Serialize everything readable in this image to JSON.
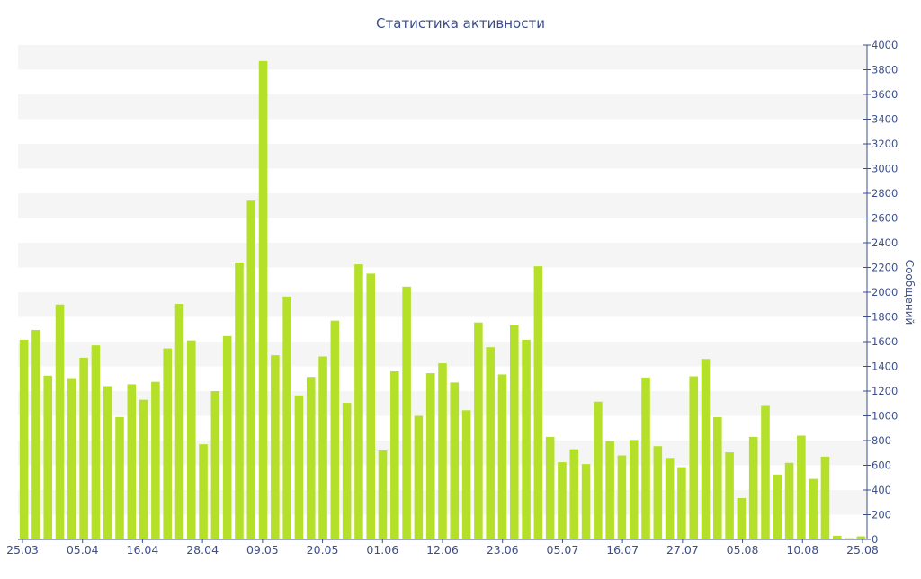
{
  "chart_data": {
    "type": "bar",
    "title": "Статистика активности",
    "ylabel": "Сообщений",
    "xlabel": "",
    "ylim": [
      0,
      4000
    ],
    "y_ticks": [
      0,
      200,
      400,
      600,
      800,
      1000,
      1200,
      1400,
      1600,
      1800,
      2000,
      2200,
      2400,
      2600,
      2800,
      3000,
      3200,
      3400,
      3600,
      3800,
      4000
    ],
    "y_axis_side": "right",
    "grid": "alternating horizontal bands",
    "legend": "none",
    "x_tick_labels": [
      "25.03",
      "05.04",
      "16.04",
      "28.04",
      "09.05",
      "20.05",
      "01.06",
      "12.06",
      "23.06",
      "05.07",
      "16.07",
      "27.07",
      "05.08",
      "10.08",
      "25.08"
    ],
    "values": [
      1615,
      1695,
      1325,
      1900,
      1305,
      1470,
      1570,
      1240,
      990,
      1255,
      1130,
      1275,
      1545,
      1905,
      1610,
      770,
      1200,
      1645,
      2240,
      2740,
      3870,
      1490,
      1965,
      1165,
      1315,
      1480,
      1770,
      1105,
      2225,
      2150,
      720,
      1360,
      2045,
      1000,
      1345,
      1425,
      1270,
      1045,
      1755,
      1555,
      1335,
      1735,
      1615,
      2210,
      830,
      625,
      730,
      610,
      1115,
      795,
      680,
      805,
      1310,
      755,
      660,
      585,
      1320,
      1460,
      990,
      705,
      335,
      830,
      1080,
      525,
      620,
      840,
      490,
      670,
      30,
      10,
      25
    ],
    "bar_color": "#b5e02a",
    "text_color": "#3c4f8c"
  }
}
